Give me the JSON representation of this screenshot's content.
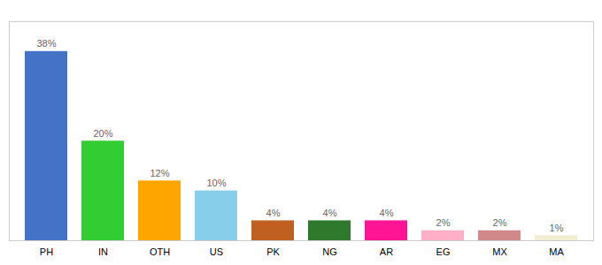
{
  "chart_data": {
    "type": "bar",
    "categories": [
      "PH",
      "IN",
      "OTH",
      "US",
      "PK",
      "NG",
      "AR",
      "EG",
      "MX",
      "MA"
    ],
    "values": [
      38,
      20,
      12,
      10,
      4,
      4,
      4,
      2,
      2,
      1
    ],
    "value_labels": [
      "38%",
      "20%",
      "12%",
      "10%",
      "4%",
      "4%",
      "4%",
      "2%",
      "2%",
      "1%"
    ],
    "data_labels": true,
    "colors": [
      "#4472C4",
      "#33CC33",
      "#FFA500",
      "#87CEEB",
      "#C06020",
      "#2D7A2D",
      "#FF1493",
      "#FFB0C8",
      "#D08888",
      "#F0EDD0"
    ],
    "ylim": [
      0,
      44
    ],
    "tick_labels": "x"
  }
}
